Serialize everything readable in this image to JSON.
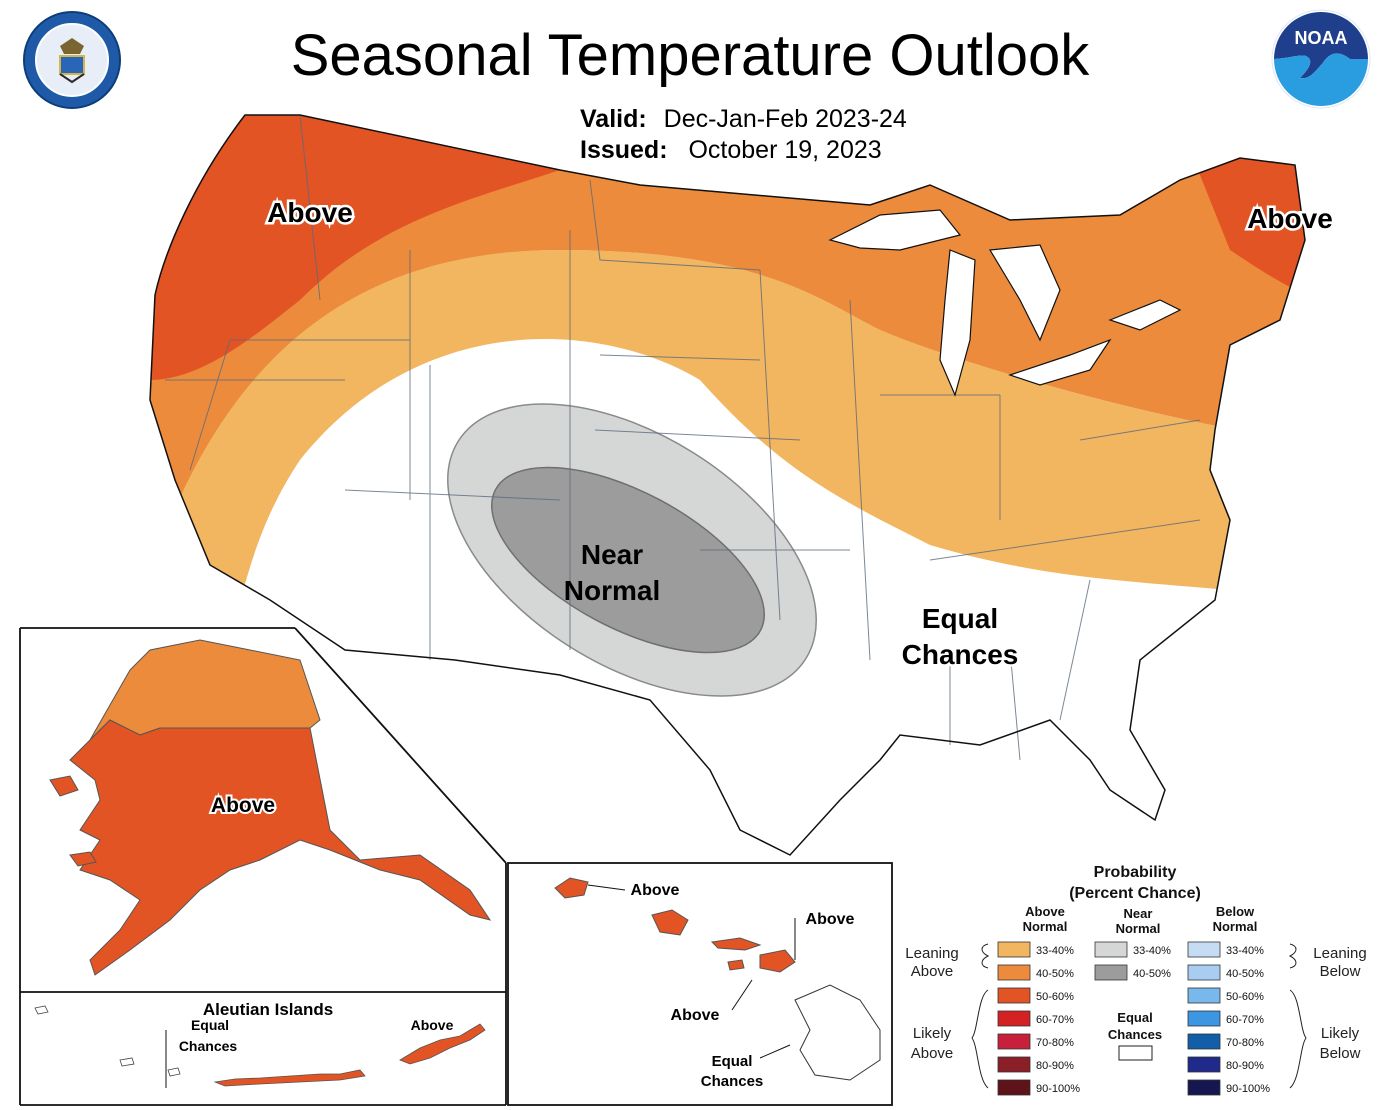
{
  "title": "Seasonal Temperature Outlook",
  "valid": {
    "label": "Valid:",
    "value": "Dec-Jan-Feb 2023-24"
  },
  "issued": {
    "label": "Issued:",
    "value": "October 19, 2023"
  },
  "logos": {
    "left": "doc-seal",
    "right": "NOAA"
  },
  "conus_labels": {
    "northwest": "Above",
    "northeast": "Above",
    "near_normal_1": "Near",
    "near_normal_2": "Normal",
    "equal_1": "Equal",
    "equal_2": "Chances"
  },
  "alaska": {
    "label": "Above"
  },
  "aleutian": {
    "title": "Aleutian Islands",
    "equal_1": "Equal",
    "equal_2": "Chances",
    "above": "Above"
  },
  "hawaii": {
    "label1": "Above",
    "label2": "Above",
    "label3": "Above",
    "equal_1": "Equal",
    "equal_2": "Chances"
  },
  "legend": {
    "title1": "Probability",
    "title2": "(Percent Chance)",
    "col_above_1": "Above",
    "col_above_2": "Normal",
    "col_near_1": "Near",
    "col_near_2": "Normal",
    "col_below_1": "Below",
    "col_below_2": "Normal",
    "leaning_above_1": "Leaning",
    "leaning_above_2": "Above",
    "likely_above_1": "Likely",
    "likely_above_2": "Above",
    "leaning_below_1": "Leaning",
    "leaning_below_2": "Below",
    "likely_below_1": "Likely",
    "likely_below_2": "Below",
    "equal_1": "Equal",
    "equal_2": "Chances",
    "above_rows": [
      {
        "label": "33-40%",
        "color": "#f2b661"
      },
      {
        "label": "40-50%",
        "color": "#ec8b3c"
      },
      {
        "label": "50-60%",
        "color": "#e25424"
      },
      {
        "label": "60-70%",
        "color": "#d42121"
      },
      {
        "label": "70-80%",
        "color": "#c8203c"
      },
      {
        "label": "80-90%",
        "color": "#8b1f28"
      },
      {
        "label": "90-100%",
        "color": "#5e121a"
      }
    ],
    "near_rows": [
      {
        "label": "33-40%",
        "color": "#d5d6d6"
      },
      {
        "label": "40-50%",
        "color": "#9c9c9c"
      }
    ],
    "below_rows": [
      {
        "label": "33-40%",
        "color": "#c6dcf3"
      },
      {
        "label": "40-50%",
        "color": "#a8cdf0"
      },
      {
        "label": "50-60%",
        "color": "#78b8ec"
      },
      {
        "label": "60-70%",
        "color": "#3d96e2"
      },
      {
        "label": "70-80%",
        "color": "#125ea8"
      },
      {
        "label": "80-90%",
        "color": "#1f2a8a"
      },
      {
        "label": "90-100%",
        "color": "#161750"
      }
    ]
  }
}
